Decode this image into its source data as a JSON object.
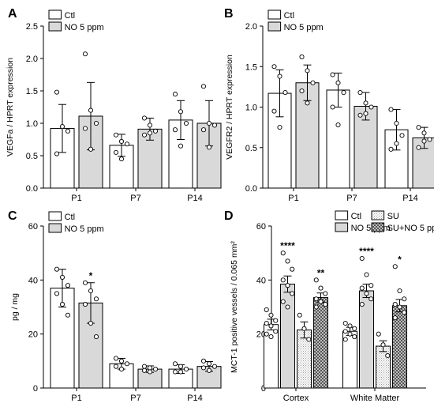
{
  "colors": {
    "ctl": "#ffffff",
    "no": "#d9d9d9",
    "su": "#eeeeee",
    "suno": "#777777"
  },
  "chart_data": [
    {
      "panel": "A",
      "type": "bar",
      "ylabel": "VEGFa / HPRT expression",
      "ylim": [
        0,
        2.5
      ],
      "yticks": [
        "0.0",
        "0.5",
        "1.0",
        "1.5",
        "2.0",
        "2.5"
      ],
      "categories": [
        "P1",
        "P7",
        "P14"
      ],
      "series": [
        {
          "name": "Ctl",
          "fill": "ctl",
          "values": [
            0.92,
            0.66,
            1.05
          ],
          "err": [
            0.37,
            0.17,
            0.3
          ],
          "points": [
            [
              1.48,
              0.95,
              0.88,
              0.53
            ],
            [
              0.82,
              0.72,
              0.68,
              0.55,
              0.45
            ],
            [
              1.45,
              1.18,
              1.0,
              0.9,
              0.65
            ]
          ]
        },
        {
          "name": "NO 5 ppm",
          "fill": "no",
          "values": [
            1.11,
            0.91,
            1.0
          ],
          "err": [
            0.52,
            0.17,
            0.35
          ],
          "points": [
            [
              2.07,
              1.2,
              1.0,
              0.92,
              0.6
            ],
            [
              1.08,
              0.97,
              0.88,
              0.82,
              0.85
            ],
            [
              1.57,
              1.0,
              0.97,
              0.9,
              0.63
            ]
          ]
        }
      ]
    },
    {
      "panel": "B",
      "type": "bar",
      "ylabel": "VEGFR2 / HPRT expression",
      "ylim": [
        0,
        2.0
      ],
      "yticks": [
        "0.0",
        "0.5",
        "1.0",
        "1.5",
        "2.0"
      ],
      "categories": [
        "P1",
        "P7",
        "P14"
      ],
      "series": [
        {
          "name": "Ctl",
          "fill": "ctl",
          "values": [
            1.17,
            1.21,
            0.72
          ],
          "err": [
            0.29,
            0.21,
            0.25
          ],
          "points": [
            [
              1.5,
              1.38,
              1.18,
              0.95,
              0.75
            ],
            [
              1.4,
              1.3,
              1.18,
              1.0,
              0.78
            ],
            [
              0.97,
              0.8,
              0.65,
              0.48,
              0.55
            ]
          ]
        },
        {
          "name": "NO 5 ppm",
          "fill": "no",
          "values": [
            1.3,
            1.01,
            0.62
          ],
          "err": [
            0.22,
            0.17,
            0.13
          ],
          "points": [
            [
              1.62,
              1.45,
              1.3,
              1.2,
              1.05
            ],
            [
              1.18,
              1.05,
              1.0,
              0.9,
              0.92
            ],
            [
              0.75,
              0.68,
              0.6,
              0.5,
              0.58
            ]
          ]
        }
      ]
    },
    {
      "panel": "C",
      "type": "bar",
      "ylabel": "pg / mg",
      "ylim": [
        0,
        60
      ],
      "yticks": [
        "0",
        "20",
        "40",
        "60"
      ],
      "categories": [
        "P1",
        "P7",
        "P14"
      ],
      "annotations": [
        {
          "category": 0,
          "series": 1,
          "text": "*"
        }
      ],
      "series": [
        {
          "name": "Ctl",
          "fill": "ctl",
          "values": [
            37,
            9,
            7
          ],
          "err": [
            7,
            2,
            1.6
          ],
          "points": [
            [
              44,
              41,
              38,
              35,
              31,
              27
            ],
            [
              11,
              10,
              9,
              8,
              7
            ],
            [
              9,
              8,
              7,
              6,
              6
            ]
          ]
        },
        {
          "name": "NO 5 ppm",
          "fill": "no",
          "values": [
            31.5,
            7,
            8
          ],
          "err": [
            7.5,
            1.2,
            1.8
          ],
          "points": [
            [
              39,
              36,
              33,
              31,
              24,
              19
            ],
            [
              8,
              7.5,
              7,
              6.5,
              6
            ],
            [
              10,
              9,
              8,
              7.5,
              6.5
            ]
          ]
        }
      ]
    },
    {
      "panel": "D",
      "type": "bar",
      "ylabel": "MCT-1 positive vessels / 0.065 mm²",
      "ylim": [
        0,
        60
      ],
      "yticks": [
        "0",
        "20",
        "40",
        "60"
      ],
      "categories": [
        "Cortex",
        "White  Matter"
      ],
      "annotations": [
        {
          "category": 0,
          "series": 1,
          "text": "****"
        },
        {
          "category": 0,
          "series": 3,
          "text": "**"
        },
        {
          "category": 1,
          "series": 1,
          "text": "****"
        },
        {
          "category": 1,
          "series": 3,
          "text": "*"
        }
      ],
      "series": [
        {
          "name": "Ctl",
          "fill": "ctl",
          "values": [
            23.5,
            21
          ],
          "err": [
            2,
            1.5
          ],
          "points": [
            [
              29,
              27,
              25,
              24,
              23,
              21,
              20,
              19
            ],
            [
              24,
              23,
              22,
              21,
              20,
              19,
              18
            ]
          ]
        },
        {
          "name": "NO 5 ppm",
          "fill": "no",
          "values": [
            38.5,
            36
          ],
          "err": [
            3,
            2.5
          ],
          "points": [
            [
              50,
              47,
              44,
              40,
              38,
              35,
              32,
              30
            ],
            [
              48,
              42,
              38,
              37,
              35,
              33,
              31
            ]
          ]
        },
        {
          "name": "SU",
          "fill": "su",
          "values": [
            21.5,
            15.5
          ],
          "err": [
            3,
            2
          ],
          "points": [
            [
              27,
              22,
              18
            ],
            [
              20,
              16,
              12
            ]
          ]
        },
        {
          "name": "SU+NO 5 ppm",
          "fill": "suno",
          "values": [
            33.5,
            30.5
          ],
          "err": [
            1.7,
            2.3
          ],
          "points": [
            [
              40,
              37,
              35,
              33,
              32,
              31,
              30
            ],
            [
              45,
              36,
              33,
              31,
              30,
              28,
              26
            ]
          ]
        }
      ]
    }
  ]
}
